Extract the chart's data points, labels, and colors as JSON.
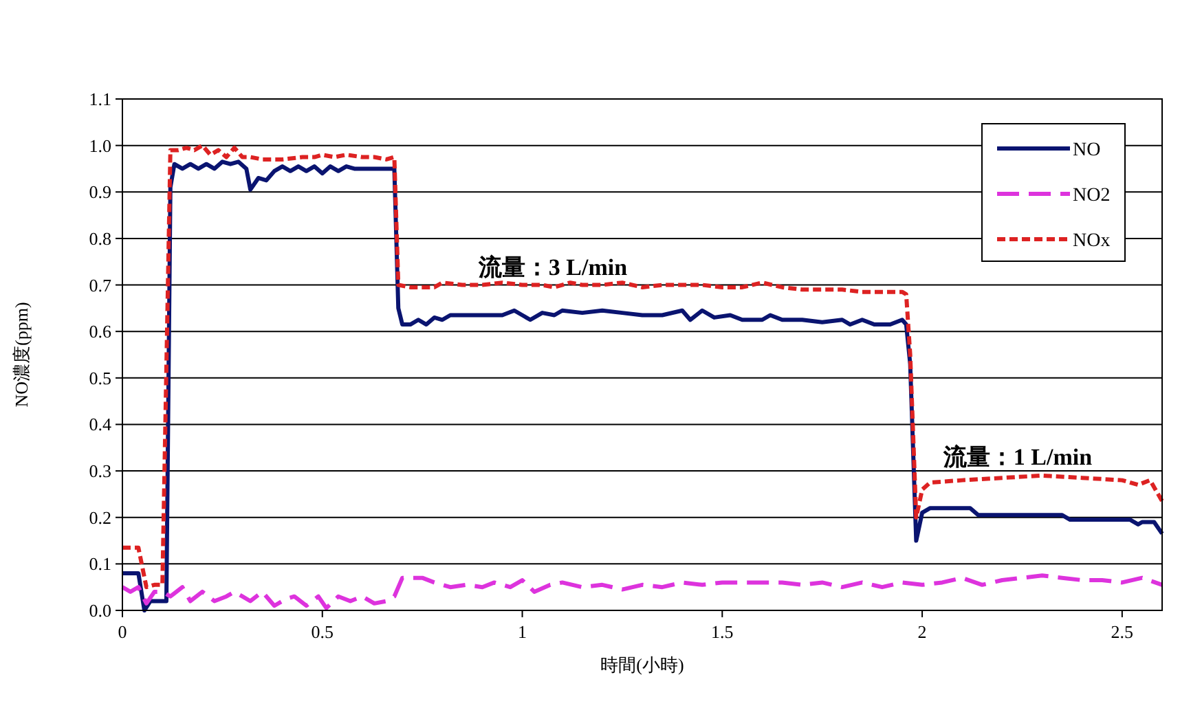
{
  "chart_data": {
    "type": "line",
    "xlabel": "時間(小時)",
    "ylabel": "NO濃度(ppm)",
    "xlim": [
      0,
      2.6
    ],
    "xticks": [
      0,
      0.5,
      1,
      1.5,
      2,
      2.5
    ],
    "ylim": [
      0,
      1.1
    ],
    "yticks": [
      {
        "value": 0,
        "label": "0.0"
      },
      0.1,
      0.2,
      0.3,
      0.4,
      0.5,
      0.6,
      0.7,
      0.8,
      0.9,
      {
        "value": 1,
        "label": "1.0"
      },
      1.1
    ],
    "grid": "y",
    "legend": "top right",
    "annotations": [
      "流量：3 L/min",
      "流量：1 L/min"
    ],
    "series": [
      {
        "name": "NO",
        "color": "#0a1470",
        "line_style": "solid",
        "x": [
          0,
          0.04,
          0.055,
          0.07,
          0.11,
          0.12,
          0.13,
          0.15,
          0.17,
          0.19,
          0.21,
          0.23,
          0.25,
          0.27,
          0.29,
          0.31,
          0.32,
          0.34,
          0.36,
          0.38,
          0.4,
          0.42,
          0.44,
          0.46,
          0.48,
          0.5,
          0.52,
          0.54,
          0.56,
          0.58,
          0.62,
          0.67,
          0.68,
          0.69,
          0.7,
          0.72,
          0.74,
          0.76,
          0.78,
          0.8,
          0.82,
          0.85,
          0.9,
          0.95,
          0.98,
          1.0,
          1.02,
          1.05,
          1.08,
          1.1,
          1.15,
          1.2,
          1.25,
          1.3,
          1.35,
          1.4,
          1.42,
          1.45,
          1.48,
          1.52,
          1.55,
          1.6,
          1.62,
          1.65,
          1.7,
          1.75,
          1.8,
          1.82,
          1.85,
          1.88,
          1.92,
          1.95,
          1.96,
          1.97,
          1.985,
          2.0,
          2.02,
          2.12,
          2.14,
          2.25,
          2.35,
          2.37,
          2.52,
          2.54,
          2.55,
          2.58,
          2.6
        ],
        "values": [
          0.08,
          0.08,
          0.0,
          0.02,
          0.02,
          0.91,
          0.96,
          0.95,
          0.96,
          0.95,
          0.96,
          0.95,
          0.965,
          0.96,
          0.965,
          0.95,
          0.905,
          0.93,
          0.925,
          0.945,
          0.955,
          0.945,
          0.955,
          0.945,
          0.955,
          0.94,
          0.955,
          0.945,
          0.955,
          0.95,
          0.95,
          0.95,
          0.95,
          0.65,
          0.615,
          0.615,
          0.625,
          0.615,
          0.63,
          0.625,
          0.635,
          0.635,
          0.635,
          0.635,
          0.645,
          0.635,
          0.625,
          0.64,
          0.635,
          0.645,
          0.64,
          0.645,
          0.64,
          0.635,
          0.635,
          0.645,
          0.625,
          0.645,
          0.63,
          0.635,
          0.625,
          0.625,
          0.635,
          0.625,
          0.625,
          0.62,
          0.625,
          0.615,
          0.625,
          0.615,
          0.615,
          0.625,
          0.615,
          0.53,
          0.15,
          0.21,
          0.22,
          0.22,
          0.205,
          0.205,
          0.205,
          0.195,
          0.195,
          0.185,
          0.19,
          0.19,
          0.165
        ]
      },
      {
        "name": "NO2",
        "color": "#dd33dd",
        "line_style": "dashed",
        "x": [
          0,
          0.02,
          0.04,
          0.06,
          0.08,
          0.1,
          0.12,
          0.15,
          0.17,
          0.2,
          0.23,
          0.26,
          0.28,
          0.3,
          0.32,
          0.35,
          0.38,
          0.41,
          0.43,
          0.46,
          0.49,
          0.51,
          0.54,
          0.57,
          0.6,
          0.63,
          0.66,
          0.68,
          0.7,
          0.75,
          0.78,
          0.82,
          0.86,
          0.9,
          0.93,
          0.97,
          1.0,
          1.03,
          1.07,
          1.1,
          1.15,
          1.2,
          1.25,
          1.3,
          1.35,
          1.4,
          1.45,
          1.5,
          1.55,
          1.6,
          1.65,
          1.7,
          1.75,
          1.8,
          1.85,
          1.9,
          1.95,
          2.0,
          2.05,
          2.1,
          2.15,
          2.2,
          2.25,
          2.3,
          2.35,
          2.4,
          2.45,
          2.5,
          2.55,
          2.6
        ],
        "values": [
          0.05,
          0.04,
          0.05,
          0.015,
          0.04,
          0.04,
          0.03,
          0.05,
          0.02,
          0.04,
          0.02,
          0.03,
          0.04,
          0.03,
          0.02,
          0.04,
          0.01,
          0.025,
          0.03,
          0.01,
          0.03,
          0.005,
          0.03,
          0.02,
          0.03,
          0.015,
          0.02,
          0.03,
          0.07,
          0.07,
          0.06,
          0.05,
          0.055,
          0.05,
          0.06,
          0.05,
          0.065,
          0.04,
          0.055,
          0.06,
          0.05,
          0.055,
          0.045,
          0.055,
          0.05,
          0.06,
          0.055,
          0.06,
          0.06,
          0.06,
          0.06,
          0.055,
          0.06,
          0.05,
          0.06,
          0.05,
          0.06,
          0.055,
          0.06,
          0.07,
          0.055,
          0.065,
          0.07,
          0.075,
          0.07,
          0.065,
          0.065,
          0.06,
          0.07,
          0.055
        ]
      },
      {
        "name": "NOx",
        "color": "#dd2222",
        "line_style": "dotted",
        "x": [
          0,
          0.04,
          0.06,
          0.08,
          0.1,
          0.12,
          0.14,
          0.16,
          0.18,
          0.2,
          0.22,
          0.24,
          0.26,
          0.28,
          0.3,
          0.32,
          0.35,
          0.4,
          0.45,
          0.48,
          0.5,
          0.53,
          0.56,
          0.6,
          0.63,
          0.66,
          0.68,
          0.69,
          0.72,
          0.75,
          0.78,
          0.8,
          0.85,
          0.9,
          0.95,
          1.0,
          1.05,
          1.08,
          1.12,
          1.15,
          1.2,
          1.25,
          1.3,
          1.35,
          1.4,
          1.45,
          1.5,
          1.55,
          1.6,
          1.65,
          1.7,
          1.75,
          1.8,
          1.85,
          1.9,
          1.95,
          1.96,
          1.97,
          1.985,
          2.0,
          2.02,
          2.1,
          2.2,
          2.3,
          2.4,
          2.5,
          2.54,
          2.57,
          2.6
        ],
        "values": [
          0.135,
          0.135,
          0.05,
          0.055,
          0.055,
          0.99,
          0.99,
          0.995,
          0.99,
          1.0,
          0.98,
          0.99,
          0.975,
          0.995,
          0.975,
          0.975,
          0.97,
          0.97,
          0.975,
          0.975,
          0.98,
          0.975,
          0.98,
          0.975,
          0.975,
          0.97,
          0.975,
          0.7,
          0.695,
          0.695,
          0.695,
          0.705,
          0.7,
          0.7,
          0.705,
          0.7,
          0.7,
          0.695,
          0.705,
          0.7,
          0.7,
          0.705,
          0.695,
          0.7,
          0.7,
          0.7,
          0.695,
          0.695,
          0.705,
          0.695,
          0.69,
          0.69,
          0.69,
          0.685,
          0.685,
          0.685,
          0.68,
          0.55,
          0.2,
          0.26,
          0.275,
          0.28,
          0.285,
          0.29,
          0.285,
          0.28,
          0.27,
          0.28,
          0.235
        ]
      }
    ]
  }
}
